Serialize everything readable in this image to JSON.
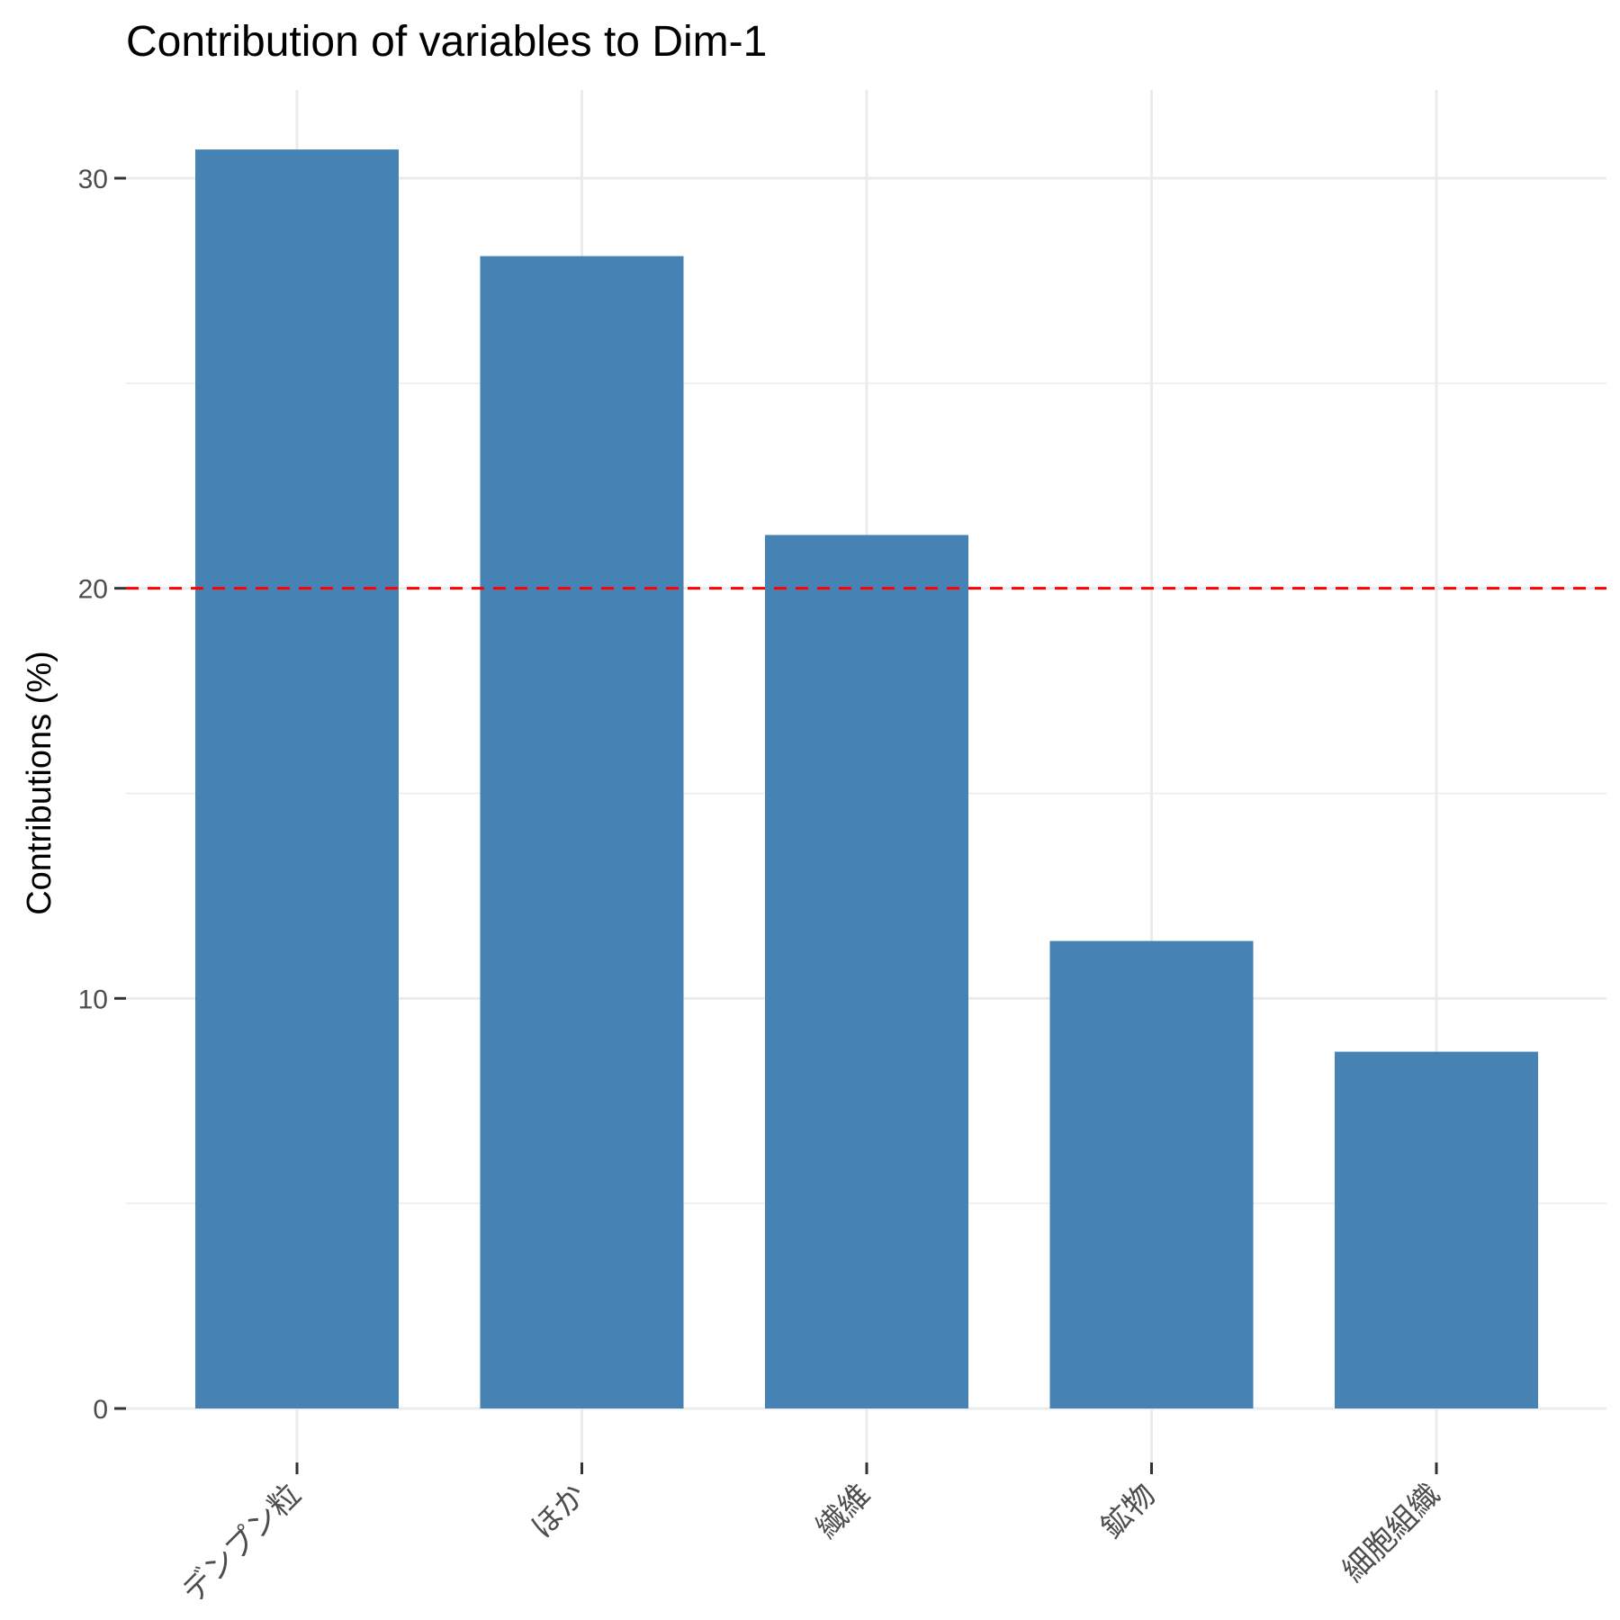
{
  "chart_data": {
    "type": "bar",
    "title": "Contribution of variables to Dim-1",
    "xlabel": "",
    "ylabel": "Contributions (%)",
    "categories": [
      "デンプン粒",
      "ほか",
      "繊維",
      "鉱物",
      "細胞組織"
    ],
    "values": [
      30.7,
      28.1,
      21.3,
      11.4,
      8.7
    ],
    "ylim": [
      0,
      32
    ],
    "y_ticks": [
      0,
      10,
      20,
      30
    ],
    "reference_line": {
      "value": 20,
      "color": "#ff0000",
      "style": "dashed"
    },
    "bar_color": "#4682b4",
    "grid": true,
    "legend": "none"
  }
}
